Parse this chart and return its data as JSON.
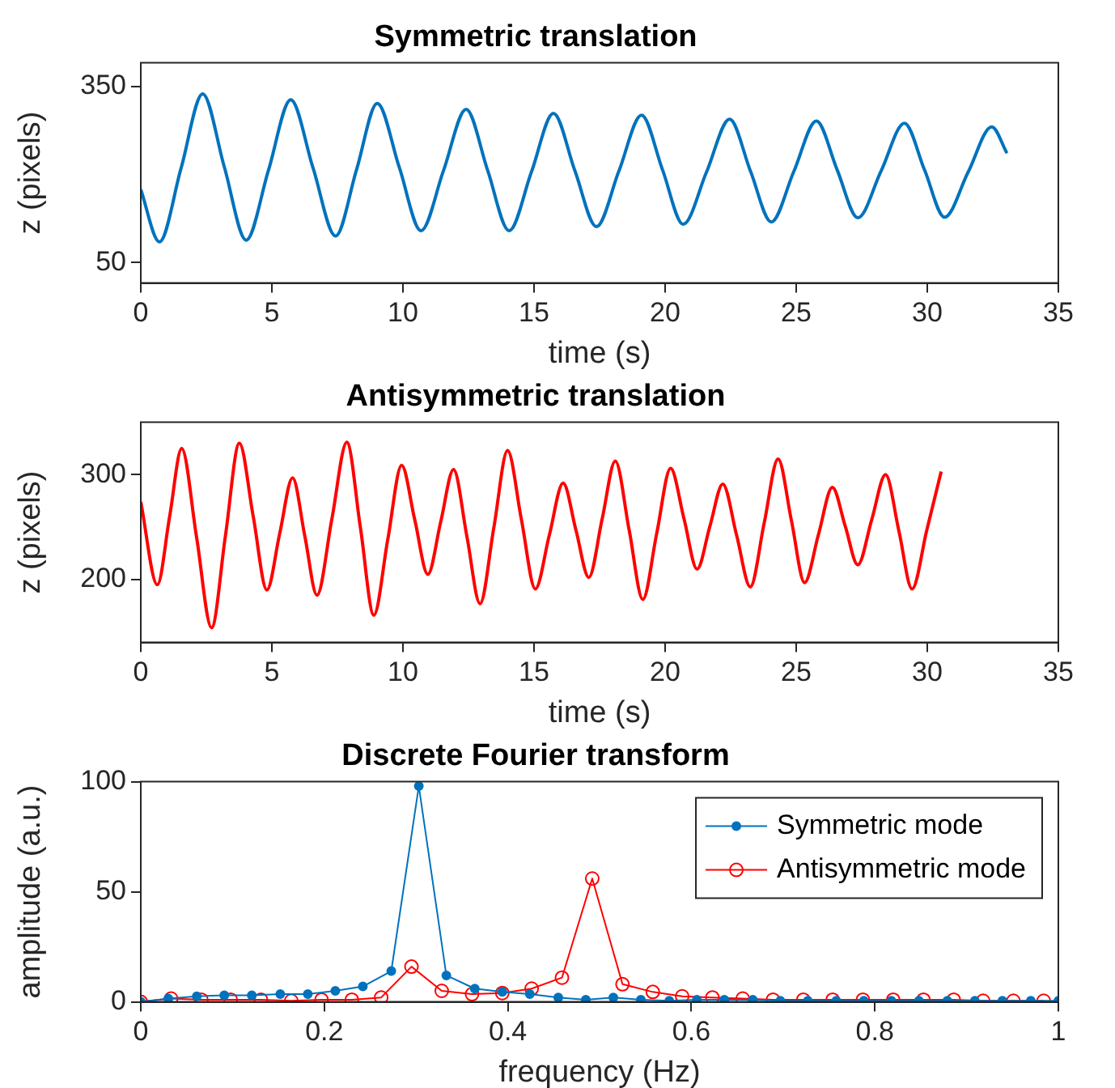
{
  "chart_data": [
    {
      "type": "line",
      "title": "Symmetric translation",
      "xlabel": "time (s)",
      "ylabel": "z (pixels)",
      "xlim": [
        0,
        35
      ],
      "xticks": [
        0,
        5,
        10,
        15,
        20,
        25,
        30,
        35
      ],
      "ylim": [
        15,
        390
      ],
      "yticks": [
        50,
        350
      ],
      "grid": false,
      "legend": false,
      "marker": "none",
      "line_style": "solid",
      "x": [
        0,
        0.71,
        1.54,
        2.36,
        3.19,
        4.02,
        4.87,
        5.72,
        6.57,
        7.43,
        8.23,
        9.02,
        9.86,
        10.69,
        11.55,
        12.41,
        13.23,
        14.05,
        14.9,
        15.74,
        16.56,
        17.38,
        18.24,
        19.1,
        19.9,
        20.69,
        21.58,
        22.46,
        23.26,
        24.05,
        24.91,
        25.77,
        26.56,
        27.35,
        28.24,
        29.13,
        29.9,
        30.66,
        31.56,
        32.46,
        33.04
      ],
      "series": [
        {
          "color": "#0072bd",
          "values": [
            174,
            85,
            211,
            337,
            212,
            88,
            207,
            327,
            211,
            95,
            208,
            321,
            212,
            104,
            207,
            311,
            207,
            104,
            204,
            304,
            206,
            111,
            206,
            301,
            208,
            115,
            204,
            294,
            205,
            119,
            205,
            291,
            208,
            126,
            206,
            287,
            207,
            127,
            204,
            281,
            236
          ]
        }
      ]
    },
    {
      "type": "line",
      "title": "Antisymmetric translation",
      "xlabel": "time (s)",
      "ylabel": "z (pixels)",
      "xlim": [
        0,
        35
      ],
      "xticks": [
        0,
        5,
        10,
        15,
        20,
        25,
        30,
        35
      ],
      "ylim": [
        140,
        350
      ],
      "yticks": [
        200,
        300
      ],
      "grid": false,
      "legend": false,
      "marker": "none",
      "line_style": "solid",
      "x": [
        0,
        0.63,
        1.1,
        1.56,
        2.13,
        2.7,
        3.23,
        3.76,
        4.29,
        4.81,
        5.3,
        5.79,
        6.26,
        6.72,
        7.29,
        7.86,
        8.38,
        8.89,
        9.42,
        9.95,
        10.45,
        10.95,
        11.44,
        11.93,
        12.44,
        12.94,
        13.47,
        13.99,
        14.52,
        15.05,
        15.58,
        16.11,
        16.6,
        17.09,
        17.6,
        18.1,
        18.63,
        19.15,
        19.68,
        20.21,
        20.72,
        21.22,
        21.71,
        22.2,
        22.73,
        23.25,
        23.78,
        24.31,
        24.82,
        25.32,
        25.85,
        26.38,
        26.87,
        27.35,
        27.88,
        28.41,
        28.92,
        29.42,
        29.98,
        30.53
      ],
      "series": [
        {
          "color": "#ff0000",
          "values": [
            274,
            195,
            260,
            325,
            240,
            154,
            242,
            330,
            260,
            190,
            244,
            297,
            241,
            185,
            258,
            331,
            249,
            166,
            238,
            309,
            257,
            205,
            255,
            305,
            241,
            177,
            250,
            323,
            257,
            191,
            242,
            292,
            247,
            202,
            258,
            313,
            247,
            181,
            244,
            306,
            258,
            210,
            251,
            291,
            242,
            193,
            254,
            315,
            256,
            197,
            243,
            288,
            251,
            214,
            257,
            300,
            246,
            191,
            247,
            303
          ]
        }
      ]
    },
    {
      "type": "line",
      "title": "Discrete Fourier transform",
      "xlabel": "frequency (Hz)",
      "ylabel": "amplitude (a.u.)",
      "xlim": [
        0,
        1
      ],
      "xticks": [
        0,
        0.2,
        0.4,
        0.6,
        0.8,
        1
      ],
      "ylim": [
        0,
        100
      ],
      "yticks": [
        0,
        50,
        100
      ],
      "grid": false,
      "legend": "top right",
      "marker": "circle",
      "line_style": "solid",
      "series": [
        {
          "name": "Symmetric mode",
          "color": "#0072bd",
          "x": [
            0,
            0.03,
            0.061,
            0.091,
            0.121,
            0.152,
            0.182,
            0.212,
            0.242,
            0.273,
            0.303,
            0.333,
            0.364,
            0.394,
            0.424,
            0.455,
            0.485,
            0.515,
            0.545,
            0.576,
            0.606,
            0.636,
            0.667,
            0.697,
            0.727,
            0.758,
            0.788,
            0.818,
            0.848,
            0.879,
            0.909,
            0.939,
            0.97,
            1
          ],
          "values": [
            0,
            1.5,
            2.5,
            3,
            3,
            3.5,
            3.5,
            5,
            7,
            14,
            98,
            12,
            6,
            4.5,
            3.5,
            2,
            1,
            2,
            1,
            0.5,
            1,
            1,
            1,
            0.5,
            0.5,
            0.5,
            0.5,
            0.5,
            0.5,
            0.5,
            0.5,
            0.5,
            0.5,
            0.5
          ]
        },
        {
          "name": "Antisymmetric mode",
          "color": "#ff0000",
          "x": [
            0,
            0.033,
            0.066,
            0.098,
            0.131,
            0.164,
            0.197,
            0.23,
            0.262,
            0.295,
            0.328,
            0.361,
            0.394,
            0.426,
            0.459,
            0.492,
            0.525,
            0.558,
            0.59,
            0.623,
            0.656,
            0.689,
            0.722,
            0.754,
            0.787,
            0.82,
            0.853,
            0.886,
            0.918,
            0.951,
            0.984
          ],
          "values": [
            0,
            1.5,
            1,
            1,
            1,
            0.5,
            1,
            1,
            2,
            16,
            5,
            3.5,
            4,
            6,
            11,
            56,
            8,
            4.5,
            2.5,
            2,
            1.5,
            1,
            1,
            1,
            1,
            1,
            1,
            1,
            0.5,
            0.5,
            0.5
          ]
        }
      ]
    }
  ]
}
